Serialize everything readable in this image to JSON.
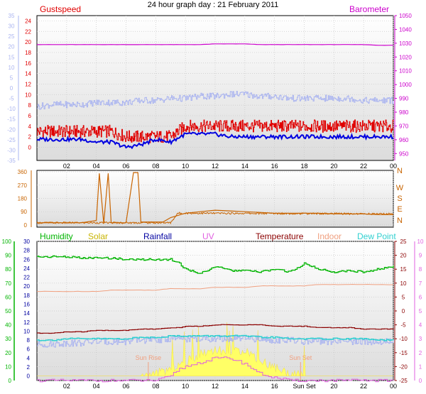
{
  "title": "24 hour graph day : 21 February 2011",
  "x_ticks": [
    "02",
    "04",
    "06",
    "08",
    "10",
    "12",
    "14",
    "16",
    "18",
    "20",
    "22",
    "00"
  ],
  "x_ticks_panel3": [
    "02",
    "04",
    "06",
    "08",
    "10",
    "12",
    "14",
    "16",
    "Sun Set",
    "20",
    "22",
    "00"
  ],
  "colors": {
    "gust": "#e00000",
    "wind": "#0000e0",
    "temp": "#8b0000",
    "baro": "#cc00cc",
    "dir": "#c86400",
    "humidity": "#00b400",
    "solar": "#ffff66",
    "rain": "#0000a0",
    "uv": "#e060e0",
    "indoor": "#f0a080",
    "dewpoint": "#30d0d0",
    "chill": "#aab4f0",
    "sun_marker": "#f0a080"
  },
  "chart_data": [
    {
      "type": "line",
      "panel": "wind-baro",
      "legend": {
        "left": "Gustspeed",
        "right": "Barometer"
      },
      "y_left_outer": {
        "ticks": [
          -35,
          -30,
          -25,
          -20,
          -15,
          -10,
          -5,
          0,
          5,
          10,
          15,
          20,
          25,
          30,
          35
        ]
      },
      "y_left_inner": {
        "ticks": [
          0,
          2,
          4,
          6,
          8,
          10,
          12,
          14,
          16,
          18,
          20,
          22,
          24
        ],
        "range": [
          -2.5,
          25
        ]
      },
      "y_right": {
        "ticks": [
          950,
          960,
          970,
          980,
          990,
          1000,
          1010,
          1020,
          1030,
          1040,
          1050
        ],
        "range": [
          945,
          1050
        ]
      },
      "x_hours": [
        0,
        1,
        2,
        3,
        4,
        5,
        6,
        7,
        8,
        9,
        10,
        11,
        12,
        13,
        14,
        15,
        16,
        17,
        18,
        19,
        20,
        21,
        22,
        23,
        24
      ],
      "series": [
        {
          "name": "Gustspeed",
          "axis": "left_inner",
          "values": [
            3,
            3,
            3,
            3,
            3,
            3,
            2,
            2,
            2,
            2,
            4,
            4,
            4,
            4,
            4,
            4,
            4,
            4,
            4,
            4,
            4,
            4,
            4,
            4,
            4
          ]
        },
        {
          "name": "Barometer",
          "axis": "right",
          "values": [
            1029,
            1029,
            1029,
            1029,
            1029,
            1029,
            1029,
            1029,
            1029,
            1029,
            1029,
            1029,
            1029.5,
            1029.5,
            1029.5,
            1029,
            1029,
            1029,
            1029,
            1029,
            1029,
            1029,
            1029,
            1028.5,
            1028.5
          ]
        },
        {
          "name": "Wind speed",
          "axis": "left_inner",
          "values": [
            1.5,
            1.5,
            1.5,
            1.5,
            1,
            1,
            0,
            0.5,
            1.5,
            1,
            2.5,
            2.5,
            2.5,
            2,
            2,
            2,
            2,
            2,
            2,
            2,
            2,
            2,
            2,
            2,
            2
          ]
        },
        {
          "name": "Temperature (outer scale)",
          "axis": "left_outer",
          "values": [
            -9,
            -8,
            -8,
            -8,
            -7,
            -7,
            -7,
            -6,
            -6,
            -5,
            -5,
            -4,
            -4,
            -3,
            -3,
            -4,
            -4,
            -5,
            -5,
            -5,
            -5,
            -5,
            -6,
            -6,
            -6
          ]
        }
      ]
    },
    {
      "type": "line",
      "panel": "wind-direction",
      "y_left": {
        "ticks": [
          0,
          90,
          180,
          270,
          360
        ],
        "range": [
          -15,
          370
        ]
      },
      "y_right_labels": [
        "N",
        "W",
        "S",
        "E",
        "N"
      ],
      "x_hours": [
        0,
        1,
        2,
        3,
        4,
        4.2,
        4.5,
        4.8,
        5,
        6,
        6.5,
        6.8,
        7,
        8,
        8.5,
        9,
        10,
        11,
        12,
        13,
        14,
        15,
        16,
        17,
        18,
        19,
        20,
        21,
        22,
        23,
        24
      ],
      "series": [
        {
          "name": "Wind direction",
          "values": [
            15,
            15,
            15,
            15,
            30,
            350,
            10,
            350,
            15,
            15,
            355,
            355,
            20,
            20,
            20,
            50,
            80,
            90,
            100,
            95,
            90,
            85,
            80,
            80,
            80,
            80,
            75,
            75,
            75,
            70,
            70
          ]
        }
      ]
    },
    {
      "type": "line",
      "panel": "weather",
      "legend": [
        "Humidity",
        "Solar",
        "Rainfall",
        "UV",
        "Temperature",
        "Indoor",
        "Dew Point"
      ],
      "y_left_humidity": {
        "ticks": [
          0,
          10,
          20,
          30,
          40,
          50,
          60,
          70,
          80,
          90,
          100
        ]
      },
      "y_left_secondary": {
        "ticks": [
          0,
          2,
          4,
          6,
          8,
          10,
          12,
          14,
          16,
          18,
          20,
          22,
          24,
          26,
          28,
          30
        ]
      },
      "y_right_temperature": {
        "ticks": [
          -25,
          -20,
          -15,
          -10,
          -5,
          0,
          5,
          10,
          15,
          20,
          25
        ]
      },
      "y_right_uv": {
        "ticks": [
          0,
          1,
          2,
          3,
          4,
          5,
          6,
          7,
          8,
          9,
          10
        ]
      },
      "annotations": [
        {
          "text": "Sun Rise",
          "hour": 7.5
        },
        {
          "text": "Sun Set",
          "hour": 17.75
        }
      ],
      "x_hours": [
        0,
        1,
        2,
        3,
        4,
        5,
        6,
        7,
        8,
        9,
        9.5,
        10,
        11,
        12,
        13,
        14,
        15,
        16,
        17,
        18,
        19,
        20,
        21,
        22,
        23,
        24
      ],
      "series": [
        {
          "name": "Humidity",
          "axis": "humidity",
          "values": [
            89,
            89,
            89,
            88,
            88,
            88,
            87,
            87,
            87,
            87,
            85,
            80,
            77,
            82,
            79,
            79,
            78,
            80,
            78,
            84,
            80,
            78,
            79,
            78,
            80,
            82
          ]
        },
        {
          "name": "Temperature",
          "axis": "temperature",
          "values": [
            -8,
            -8,
            -7.5,
            -7.5,
            -7,
            -7,
            -7,
            -6.5,
            -6.5,
            -6,
            -6,
            -5.5,
            -5.5,
            -5,
            -5,
            -5,
            -5,
            -5.5,
            -5.5,
            -5.5,
            -6,
            -6,
            -6,
            -6.5,
            -6.5,
            -6.5
          ]
        },
        {
          "name": "Indoor",
          "axis": "humidity",
          "values": [
            64,
            64,
            64,
            64,
            64,
            65,
            65,
            65,
            65,
            66,
            66,
            66,
            66,
            67,
            67,
            67,
            68,
            68,
            68,
            68,
            69,
            69,
            69,
            69,
            69,
            69
          ]
        },
        {
          "name": "Dew Point",
          "axis": "temperature",
          "values": [
            -10.5,
            -10.5,
            -10,
            -10,
            -10,
            -10,
            -10,
            -9.5,
            -9.5,
            -9,
            -9,
            -9,
            -9,
            -9,
            -9,
            -9,
            -9.5,
            -9.5,
            -10,
            -10,
            -10,
            -10,
            -10,
            -10,
            -10.5,
            -10.5
          ]
        },
        {
          "name": "Wind chill",
          "axis": "temperature",
          "values": [
            -12,
            -12,
            -11.5,
            -11.5,
            -11,
            -11,
            -11,
            -10.5,
            -10.5,
            -10,
            -10,
            -10,
            -10,
            -10,
            -10,
            -10,
            -10,
            -10.5,
            -10.5,
            -11,
            -11,
            -11,
            -11,
            -11,
            -11,
            -11
          ]
        },
        {
          "name": "UV",
          "axis": "uv",
          "values": [
            0,
            0,
            0,
            0,
            0,
            0,
            0,
            0,
            0,
            0.3,
            0.8,
            1,
            1.3,
            1.6,
            1.6,
            1.2,
            0.5,
            0.2,
            0,
            0,
            0,
            0,
            0,
            0,
            0,
            0
          ]
        },
        {
          "name": "Solar",
          "axis": "secondary",
          "values": [
            0,
            0,
            0,
            0,
            0,
            0,
            0,
            0,
            0.5,
            1.5,
            2.5,
            3,
            5,
            6,
            5,
            6,
            3.5,
            2,
            0.5,
            0,
            0,
            0,
            0,
            0,
            0,
            0
          ]
        }
      ]
    }
  ]
}
